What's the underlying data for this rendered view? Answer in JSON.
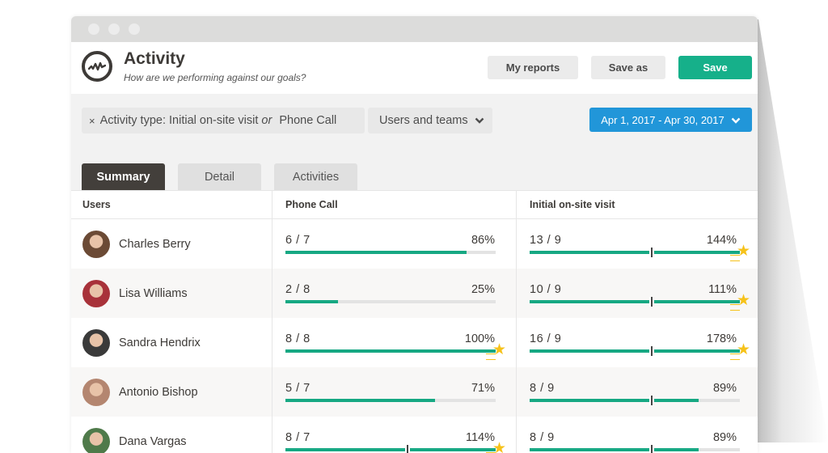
{
  "window": {
    "title": "Activity",
    "subtitle": "How are we performing against our goals?",
    "logo_icon": "activity-pulse-icon"
  },
  "header": {
    "buttons": {
      "my_reports": "My reports",
      "save_as": "Save as",
      "save": "Save"
    }
  },
  "filters": {
    "remove_icon": "×",
    "activity_type_label": "Activity type: Initial on-site visit",
    "or_label": "or",
    "activity_type_second": "Phone Call",
    "users_teams_label": "Users and teams",
    "date_range": "Apr 1, 2017 - Apr 30, 2017"
  },
  "tabs": [
    {
      "label": "Summary",
      "active": true
    },
    {
      "label": "Detail",
      "active": false
    },
    {
      "label": "Activities",
      "active": false
    }
  ],
  "table": {
    "columns": [
      "Users",
      "Phone Call",
      "Initial on-site visit"
    ],
    "rows": [
      {
        "name": "Charles Berry",
        "avatar_color": "#6b4a35",
        "phone": {
          "ratio": "6 / 7",
          "pct": "86%",
          "value": 86,
          "star": false
        },
        "visit": {
          "ratio": "13 / 9",
          "pct": "144%",
          "value": 144,
          "star": true
        }
      },
      {
        "name": "Lisa Williams",
        "avatar_color": "#a8323a",
        "phone": {
          "ratio": "2 / 8",
          "pct": "25%",
          "value": 25,
          "star": false
        },
        "visit": {
          "ratio": "10 / 9",
          "pct": "111%",
          "value": 111,
          "star": true
        }
      },
      {
        "name": "Sandra Hendrix",
        "avatar_color": "#3a3a3a",
        "phone": {
          "ratio": "8 / 8",
          "pct": "100%",
          "value": 100,
          "star": true
        },
        "visit": {
          "ratio": "16 / 9",
          "pct": "178%",
          "value": 178,
          "star": true
        }
      },
      {
        "name": "Antonio Bishop",
        "avatar_color": "#b48670",
        "phone": {
          "ratio": "5 / 7",
          "pct": "71%",
          "value": 71,
          "star": false
        },
        "visit": {
          "ratio": "8 / 9",
          "pct": "89%",
          "value": 89,
          "star": false
        }
      },
      {
        "name": "Dana Vargas",
        "avatar_color": "#4f7a4a",
        "phone": {
          "ratio": "8 / 7",
          "pct": "114%",
          "value": 114,
          "star": true
        },
        "visit": {
          "ratio": "8 / 9",
          "pct": "89%",
          "value": 89,
          "star": false
        }
      }
    ]
  },
  "colors": {
    "accent_green": "#16b08a",
    "date_blue": "#2196d9",
    "active_tab": "#433f3b",
    "star": "#f6c21a"
  }
}
